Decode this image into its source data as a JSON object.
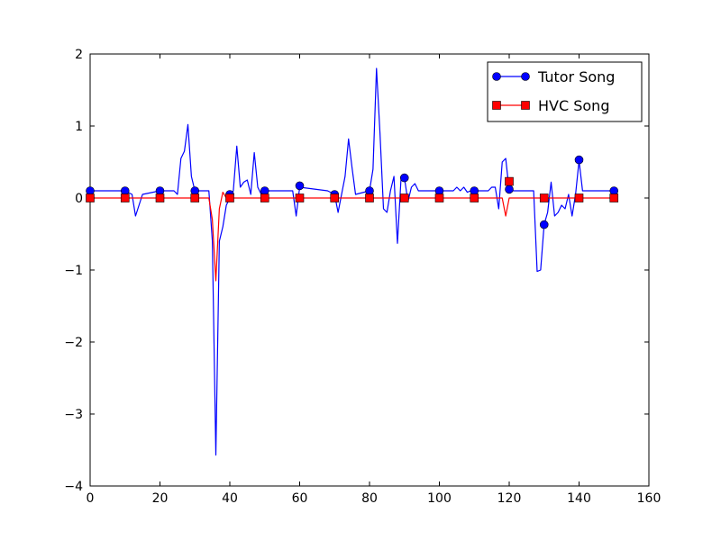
{
  "chart_data": {
    "type": "line",
    "title": "",
    "xlabel": "",
    "ylabel": "",
    "xlim": [
      0,
      160
    ],
    "ylim": [
      -4,
      2
    ],
    "xticks": [
      0,
      20,
      40,
      60,
      80,
      100,
      120,
      140,
      160
    ],
    "yticks": [
      -4,
      -3,
      -2,
      -1,
      0,
      1,
      2
    ],
    "x_tick_labels": [
      "0",
      "20",
      "40",
      "60",
      "80",
      "100",
      "120",
      "140",
      "160"
    ],
    "y_tick_labels": [
      "−4",
      "−3",
      "−2",
      "−1",
      "0",
      "1",
      "2"
    ],
    "grid": false,
    "legend_position": "top-right",
    "series": [
      {
        "name": "Tutor Song",
        "color": "#0000ff",
        "marker": "circle",
        "line": {
          "x": [
            0,
            10,
            12,
            13,
            15,
            20,
            24,
            25,
            26,
            27,
            28,
            29,
            30,
            31,
            32,
            33,
            34,
            35,
            36,
            37,
            38,
            39,
            40,
            41,
            42,
            43,
            44,
            45,
            46,
            47,
            48,
            49,
            50,
            58,
            59,
            60,
            68,
            70,
            71,
            72,
            73,
            74,
            75,
            76,
            80,
            81,
            82,
            83,
            84,
            85,
            86,
            87,
            88,
            89,
            90,
            91,
            92,
            93,
            94,
            100,
            104,
            105,
            106,
            107,
            108,
            109,
            110,
            114,
            115,
            116,
            117,
            118,
            119,
            120,
            121,
            127,
            128,
            129,
            130,
            131,
            132,
            133,
            134,
            135,
            136,
            137,
            138,
            139,
            140,
            141,
            150
          ],
          "y": [
            0.1,
            0.1,
            0.05,
            -0.25,
            0.05,
            0.1,
            0.1,
            0.05,
            0.55,
            0.65,
            1.02,
            0.3,
            0.1,
            0.1,
            0.1,
            0.1,
            0.1,
            -0.6,
            -3.57,
            -0.6,
            -0.4,
            -0.1,
            0.0,
            0.1,
            0.72,
            0.15,
            0.22,
            0.25,
            0.05,
            0.63,
            0.15,
            0.05,
            0.1,
            0.1,
            -0.25,
            0.15,
            0.1,
            0.05,
            -0.2,
            0.05,
            0.3,
            0.82,
            0.42,
            0.05,
            0.1,
            0.4,
            1.8,
            0.9,
            -0.15,
            -0.2,
            0.1,
            0.3,
            -0.63,
            0.25,
            0.28,
            -0.05,
            0.15,
            0.2,
            0.1,
            0.1,
            0.1,
            0.15,
            0.1,
            0.15,
            0.08,
            0.1,
            0.1,
            0.1,
            0.15,
            0.15,
            -0.15,
            0.5,
            0.55,
            0.1,
            0.1,
            0.1,
            -1.02,
            -1.0,
            -0.37,
            -0.2,
            0.22,
            -0.25,
            -0.2,
            -0.1,
            -0.15,
            0.05,
            -0.25,
            0.05,
            0.52,
            0.1,
            0.1
          ]
        },
        "markers": {
          "x": [
            0,
            10,
            20,
            30,
            40,
            50,
            60,
            70,
            80,
            90,
            100,
            110,
            120,
            130,
            140,
            150
          ],
          "y": [
            0.1,
            0.1,
            0.1,
            0.1,
            0.05,
            0.1,
            0.17,
            0.05,
            0.1,
            0.28,
            0.1,
            0.1,
            0.12,
            -0.37,
            0.53,
            0.1
          ]
        }
      },
      {
        "name": "HVC Song",
        "color": "#ff0000",
        "marker": "square",
        "line": {
          "x": [
            0,
            34,
            35,
            36,
            37,
            38,
            39,
            40,
            118,
            119,
            120,
            121,
            150
          ],
          "y": [
            0.0,
            0.0,
            -0.3,
            -1.15,
            -0.15,
            0.08,
            0.0,
            0.0,
            0.0,
            -0.25,
            0.0,
            0.0,
            0.0
          ]
        },
        "markers": {
          "x": [
            0,
            10,
            20,
            30,
            40,
            50,
            60,
            70,
            80,
            90,
            100,
            110,
            120,
            130,
            140,
            150
          ],
          "y": [
            0.0,
            0.0,
            0.0,
            0.0,
            0.0,
            0.0,
            0.0,
            0.0,
            0.0,
            0.0,
            0.0,
            0.0,
            0.23,
            0.0,
            0.0,
            0.0
          ]
        }
      }
    ]
  }
}
